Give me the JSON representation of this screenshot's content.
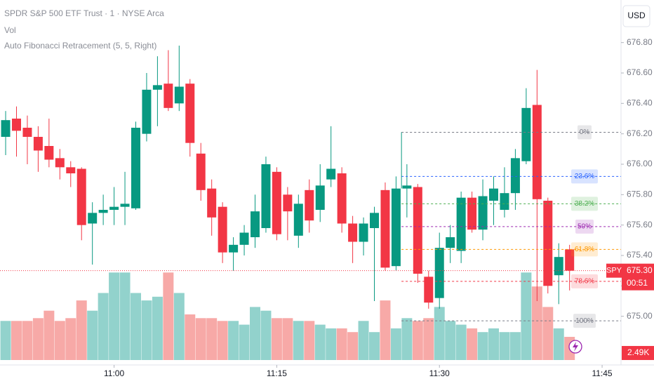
{
  "chart_data": {
    "type": "candlestick",
    "title": "SPDR S&P 500 ETF Trust · 1 · NYSE Arca",
    "indicators": [
      "Vol",
      "Auto Fibonacci Retracement (5, 5, Right)"
    ],
    "currency": "USD",
    "symbol": "SPY",
    "last_price": {
      "value": 675.3,
      "label": "675.30"
    },
    "countdown": "00:51",
    "last_volume_label": "2.49K",
    "up_color": "#089981",
    "down_color": "#f23645",
    "volume_up_color": "#92d2cc",
    "volume_down_color": "#f7a9a7",
    "x": [
      50,
      51,
      52,
      53,
      54,
      55,
      56,
      57,
      58,
      59,
      60,
      61,
      62,
      63,
      64,
      65,
      66,
      67,
      68,
      69,
      70,
      71,
      72,
      73,
      74,
      75,
      76,
      77,
      78,
      79,
      80,
      81,
      82,
      83,
      84,
      85,
      86,
      87,
      88,
      89,
      90,
      91,
      92,
      93,
      94,
      95,
      96,
      97,
      98,
      99,
      100,
      101,
      102
    ],
    "open": [
      676.18,
      676.3,
      676.24,
      676.18,
      676.12,
      676.04,
      675.98,
      675.97,
      675.61,
      675.68,
      675.7,
      675.72,
      675.71,
      676.2,
      676.49,
      676.53,
      676.4,
      676.53,
      676.07,
      675.84,
      675.72,
      675.42,
      675.47,
      675.52,
      675.58,
      675.95,
      675.8,
      675.53,
      675.83,
      675.7,
      675.9,
      675.94,
      675.61,
      675.49,
      675.58,
      675.83,
      675.33,
      675.84,
      675.85,
      675.26,
      675.12,
      675.45,
      675.43,
      675.78,
      675.57,
      675.76,
      675.7,
      675.81,
      676.02,
      676.39,
      675.76,
      675.27,
      675.44
    ],
    "high": [
      676.35,
      676.38,
      676.32,
      676.25,
      676.3,
      676.1,
      676.02,
      675.98,
      675.75,
      675.8,
      675.85,
      675.95,
      676.28,
      676.6,
      676.71,
      676.75,
      676.78,
      676.56,
      676.14,
      675.9,
      675.75,
      675.52,
      675.6,
      675.8,
      676.05,
      675.98,
      675.85,
      675.8,
      675.9,
      676.0,
      676.25,
      675.98,
      675.66,
      675.65,
      675.72,
      675.88,
      675.92,
      676.0,
      675.87,
      675.3,
      675.55,
      675.6,
      675.82,
      675.82,
      675.9,
      675.92,
      675.98,
      676.1,
      676.5,
      676.62,
      675.78,
      675.48,
      675.47
    ],
    "low": [
      676.06,
      676.05,
      676.0,
      675.95,
      675.98,
      675.9,
      675.85,
      675.5,
      675.34,
      675.6,
      675.6,
      675.6,
      675.7,
      676.15,
      676.25,
      676.35,
      676.35,
      676.05,
      675.76,
      675.53,
      675.35,
      675.3,
      675.4,
      675.45,
      675.55,
      675.5,
      675.5,
      675.45,
      675.55,
      675.62,
      675.85,
      675.55,
      675.35,
      675.4,
      675.1,
      675.3,
      675.3,
      675.65,
      675.22,
      675.05,
      675.05,
      675.35,
      675.35,
      675.55,
      675.5,
      675.6,
      675.65,
      675.7,
      676.0,
      675.1,
      675.15,
      675.08,
      675.17
    ],
    "close": [
      676.29,
      676.22,
      676.18,
      676.09,
      676.03,
      675.98,
      675.94,
      675.6,
      675.68,
      675.7,
      675.72,
      675.74,
      676.24,
      676.49,
      676.52,
      676.37,
      676.51,
      676.14,
      675.83,
      675.65,
      675.42,
      675.47,
      675.55,
      675.69,
      676.0,
      675.54,
      675.69,
      675.74,
      675.63,
      675.86,
      675.97,
      675.61,
      675.49,
      675.61,
      675.68,
      675.32,
      675.84,
      675.86,
      675.28,
      675.09,
      675.45,
      675.52,
      675.78,
      675.57,
      675.79,
      675.84,
      675.81,
      676.04,
      676.37,
      675.77,
      675.2,
      675.39,
      675.3
    ],
    "volume": [
      4.2,
      4.2,
      4.2,
      4.5,
      5.3,
      4.2,
      4.5,
      6.4,
      5.3,
      7.2,
      9.4,
      9.4,
      7.2,
      6.4,
      6.8,
      9.4,
      7.2,
      4.9,
      4.5,
      4.5,
      4.2,
      4.2,
      3.8,
      5.7,
      5.3,
      4.5,
      4.5,
      4.2,
      4.2,
      3.8,
      3.4,
      3.4,
      3.0,
      4.2,
      3.0,
      6.4,
      3.4,
      4.5,
      4.2,
      4.5,
      5.7,
      4.2,
      3.8,
      3.4,
      3.0,
      3.4,
      3.0,
      3.0,
      9.4,
      7.9,
      5.7,
      3.4,
      2.49
    ],
    "volume_ylim": [
      0,
      30
    ],
    "xlim": [
      49.48,
      106.42
    ],
    "xticks": [
      {
        "value": 60,
        "label": "11:00"
      },
      {
        "value": 75,
        "label": "11:15"
      },
      {
        "value": 90,
        "label": "11:30"
      },
      {
        "value": 105,
        "label": "11:45"
      }
    ],
    "ylim": [
      674.68,
      677.08
    ],
    "yticks": [
      {
        "value": 676.8,
        "label": "676.80"
      },
      {
        "value": 676.6,
        "label": "676.60"
      },
      {
        "value": 676.4,
        "label": "676.40"
      },
      {
        "value": 676.2,
        "label": "676.20"
      },
      {
        "value": 676,
        "label": "676.00"
      },
      {
        "value": 675.8,
        "label": "675.80"
      },
      {
        "value": 675.6,
        "label": "675.60"
      },
      {
        "value": 675.4,
        "label": "675.40"
      },
      {
        "value": 675.2,
        "label": "675.20"
      },
      {
        "value": 675,
        "label": "675.00"
      }
    ],
    "fib": {
      "start_x": 86.5,
      "levels": [
        {
          "label": "0%",
          "price": 676.21,
          "color": "#787b86"
        },
        {
          "label": "23.6%",
          "price": 675.92,
          "color": "#2962ff"
        },
        {
          "label": "38.2%",
          "price": 675.74,
          "color": "#4caf50"
        },
        {
          "label": "50%",
          "price": 675.59,
          "color": "#9c27b0"
        },
        {
          "label": "61.8%",
          "price": 675.44,
          "color": "#ff9800"
        },
        {
          "label": "78.6%",
          "price": 675.23,
          "color": "#f23645"
        },
        {
          "label": "100%",
          "price": 674.97,
          "color": "#787b86"
        }
      ]
    }
  }
}
